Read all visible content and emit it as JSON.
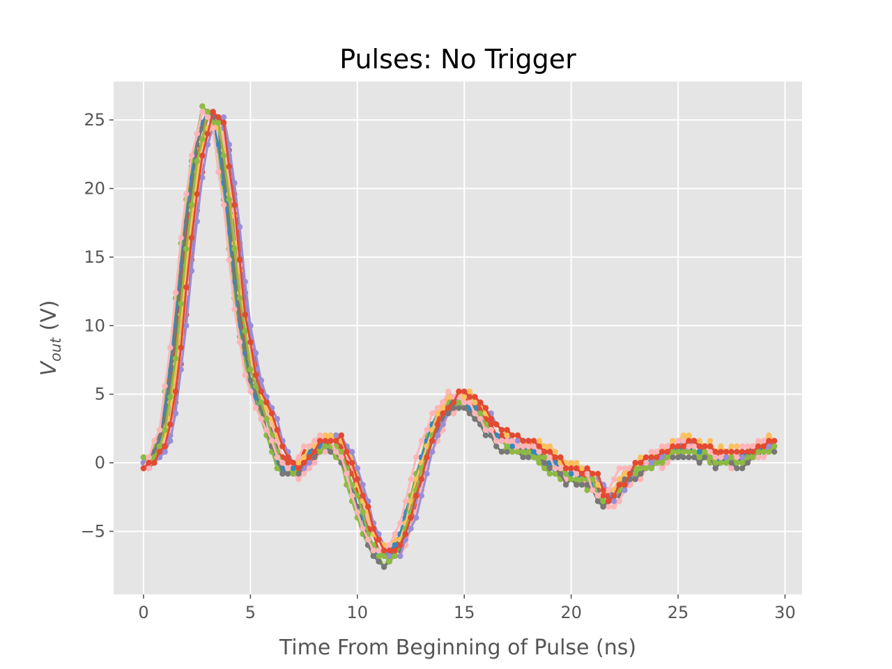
{
  "chart_data": {
    "type": "line",
    "title": "Pulses: No Trigger",
    "xlabel": "Time From Beginning of Pulse (ns)",
    "ylabel_main": "V",
    "ylabel_sub": "out",
    "ylabel_unit": "(V)",
    "xlim": [
      -1.4,
      30.8
    ],
    "ylim": [
      -9.6,
      27.8
    ],
    "xticks": [
      0,
      5,
      10,
      15,
      20,
      25,
      30
    ],
    "yticks": [
      -5,
      0,
      5,
      10,
      15,
      20,
      25
    ],
    "xtick_labels": [
      "0",
      "5",
      "10",
      "15",
      "20",
      "25",
      "30"
    ],
    "ytick_labels": [
      "−5",
      "0",
      "5",
      "10",
      "15",
      "20",
      "25"
    ],
    "grid": true,
    "background": "#e5e5e5",
    "colors": [
      "#e24a33",
      "#348abd",
      "#988ed5",
      "#777777",
      "#fbc15e",
      "#8eba42",
      "#ffb5b8"
    ],
    "sample_interval_ns": 0.25,
    "base_waveform": {
      "t": [
        0,
        0.5,
        1,
        1.5,
        2,
        2.5,
        3,
        3.5,
        4,
        4.5,
        5,
        5.5,
        6,
        6.5,
        7,
        7.5,
        8,
        8.5,
        9,
        9.5,
        10,
        10.5,
        11,
        11.5,
        12,
        12.5,
        13,
        13.5,
        14,
        14.5,
        15,
        15.5,
        16,
        16.5,
        17,
        17.5,
        18,
        18.5,
        19,
        19.5,
        20,
        20.5,
        21,
        21.5,
        22,
        22.5,
        23,
        23.5,
        24,
        24.5,
        25,
        25.5,
        26,
        26.5,
        27,
        27.5,
        28,
        28.5,
        29,
        29.5
      ],
      "v": [
        0,
        0.4,
        2.5,
        8.5,
        16.5,
        22.5,
        25.5,
        24.5,
        18.5,
        11,
        6.5,
        4.2,
        2,
        0,
        -0.5,
        0.3,
        1.2,
        1.5,
        1.4,
        0,
        -2.5,
        -5,
        -6.5,
        -6.8,
        -5.5,
        -3,
        0,
        2.5,
        4,
        4.6,
        4.6,
        4,
        3,
        2,
        1.5,
        1.2,
        1,
        0.8,
        0.3,
        -0.4,
        -0.8,
        -0.9,
        -1.3,
        -2.8,
        -2.2,
        -1,
        -0.4,
        0,
        0.4,
        0.8,
        1.2,
        1.2,
        1,
        0.7,
        0.4,
        0.3,
        0.5,
        0.9,
        1.3,
        1.4
      ]
    },
    "series": [
      {
        "shift": 0.35,
        "amp": 1.0,
        "offset": 0.0,
        "jitter": 0.5
      },
      {
        "shift": -0.15,
        "amp": 1.0,
        "offset": -0.2,
        "jitter": 0.5
      },
      {
        "shift": 0.3,
        "amp": 1.0,
        "offset": 0.3,
        "jitter": 0.5
      },
      {
        "shift": 0.15,
        "amp": 0.97,
        "offset": -0.3,
        "jitter": 0.5
      },
      {
        "shift": 0.2,
        "amp": 1.0,
        "offset": 0.4,
        "jitter": 0.5
      },
      {
        "shift": -0.2,
        "amp": 1.02,
        "offset": -0.4,
        "jitter": 0.5
      },
      {
        "shift": 0.25,
        "amp": 0.98,
        "offset": -0.5,
        "jitter": 0.5
      },
      {
        "shift": 0.0,
        "amp": 1.0,
        "offset": 0.2,
        "jitter": 0.5
      },
      {
        "shift": -0.1,
        "amp": 1.0,
        "offset": -0.1,
        "jitter": 0.5
      },
      {
        "shift": 0.4,
        "amp": 1.0,
        "offset": 0.1,
        "jitter": 0.5
      },
      {
        "shift": -0.05,
        "amp": 1.01,
        "offset": -0.6,
        "jitter": 0.5
      },
      {
        "shift": 0.1,
        "amp": 0.99,
        "offset": 0.5,
        "jitter": 0.5
      },
      {
        "shift": 0.05,
        "amp": 1.0,
        "offset": -0.3,
        "jitter": 0.5
      },
      {
        "shift": -0.25,
        "amp": 1.0,
        "offset": 0.2,
        "jitter": 0.5
      },
      {
        "shift": 0.25,
        "amp": 1.0,
        "offset": 0.3,
        "jitter": 0.5
      }
    ]
  }
}
